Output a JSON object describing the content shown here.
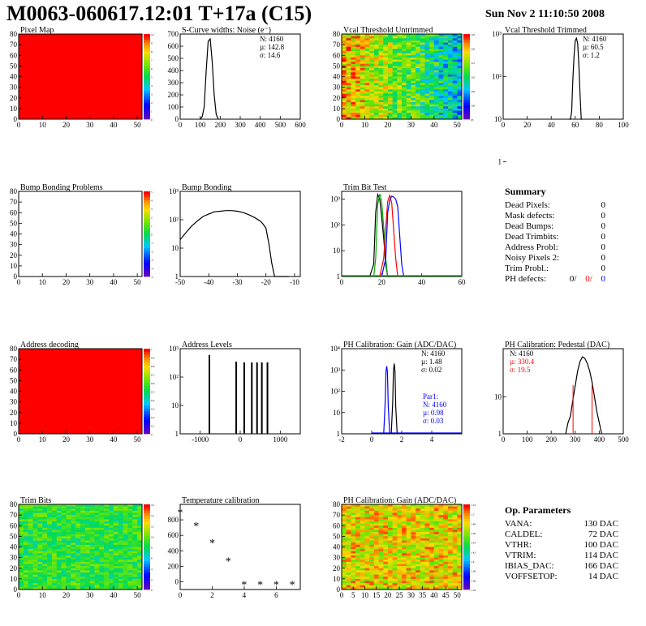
{
  "page": {
    "title": "M0063-060617.12:01 T+17a (C15)",
    "date": "Sun Nov  2 11:10:50 2008"
  },
  "chart_data": [
    {
      "id": "pixel-map",
      "type": "heatmap",
      "title": "Pixel Map",
      "xlim": [
        0,
        52
      ],
      "ylim": [
        0,
        80
      ],
      "xticks": [
        "0",
        "10",
        "20",
        "30",
        "40",
        "50"
      ],
      "yticks": [
        "0",
        "10",
        "20",
        "30",
        "40",
        "50",
        "60",
        "70",
        "80"
      ],
      "fill": "uniform-max",
      "zlim": [
        0,
        10
      ],
      "zticks": [
        "0",
        "1",
        "2",
        "3",
        "4",
        "5",
        "6",
        "7",
        "8",
        "9",
        "10"
      ]
    },
    {
      "id": "scurve-widths",
      "type": "line",
      "title": "S-Curve widths: Noise (e⁻)",
      "xlim": [
        0,
        600
      ],
      "ylim": [
        0,
        700
      ],
      "xticks": [
        "0",
        "100",
        "200",
        "300",
        "400",
        "500",
        "600"
      ],
      "yticks": [
        "0",
        "100",
        "200",
        "300",
        "400",
        "500",
        "600",
        "700"
      ],
      "stats": {
        "N": "N: 4160",
        "mu": "µ: 142.8",
        "sigma": "σ: 14.6"
      },
      "x": [
        100,
        110,
        120,
        130,
        140,
        150,
        160,
        170,
        180,
        190
      ],
      "y": [
        0,
        20,
        100,
        400,
        640,
        660,
        470,
        200,
        40,
        0
      ]
    },
    {
      "id": "vcal-untrimmed",
      "type": "heatmap",
      "title": "Vcal Threshold Untrimmed",
      "xlim": [
        0,
        52
      ],
      "ylim": [
        0,
        80
      ],
      "xticks": [
        "0",
        "10",
        "20",
        "30",
        "40",
        "50"
      ],
      "yticks": [
        "0",
        "10",
        "20",
        "30",
        "40",
        "50",
        "60",
        "70",
        "80"
      ],
      "zticks": [
        "95",
        "100",
        "105",
        "110",
        "115",
        "120",
        "125"
      ]
    },
    {
      "id": "vcal-trimmed",
      "type": "line",
      "title": "Vcal Threshold Trimmed",
      "xlim": [
        0,
        100
      ],
      "ylim_log": [
        1,
        3
      ],
      "xticks": [
        "0",
        "20",
        "40",
        "60",
        "80",
        "100"
      ],
      "yticks": [
        "1",
        "10",
        "10²",
        "10³"
      ],
      "stats": {
        "N": "N: 4160",
        "mu": "µ: 60.5",
        "sigma": "σ:  1.2"
      },
      "x": [
        55,
        56,
        57,
        58,
        59,
        60,
        61,
        62,
        63,
        64,
        65,
        66
      ],
      "y": [
        1,
        3,
        15,
        80,
        300,
        700,
        800,
        600,
        200,
        40,
        5,
        1
      ]
    },
    {
      "id": "bump-problems",
      "type": "heatmap",
      "title": "Bump Bonding Problems",
      "xlim": [
        0,
        52
      ],
      "ylim": [
        0,
        80
      ],
      "xticks": [
        "0",
        "10",
        "20",
        "30",
        "40",
        "50"
      ],
      "yticks": [
        "0",
        "10",
        "20",
        "30",
        "40",
        "50",
        "60",
        "70",
        "80"
      ],
      "fill": "empty",
      "zticks": [
        "-5",
        "-4",
        "-3",
        "-2",
        "-1",
        "0",
        "1",
        "2",
        "3",
        "4",
        "5"
      ]
    },
    {
      "id": "bump-bonding",
      "type": "line",
      "title": "Bump Bonding",
      "xlim": [
        -50,
        -8
      ],
      "ylim_log": [
        0,
        3
      ],
      "xticks": [
        "-50",
        "-40",
        "-30",
        "-20",
        "-10"
      ],
      "yticks": [
        "1",
        "10",
        "10²",
        "10³"
      ],
      "x": [
        -50,
        -48,
        -46,
        -44,
        -42,
        -40,
        -38,
        -36,
        -34,
        -32,
        -30,
        -28,
        -26,
        -24,
        -22,
        -21,
        -20,
        -19,
        -18,
        -17,
        -16,
        -15,
        -14,
        -13,
        -12
      ],
      "y": [
        20,
        35,
        60,
        90,
        130,
        160,
        190,
        200,
        210,
        210,
        200,
        180,
        150,
        120,
        90,
        70,
        50,
        15,
        3,
        1,
        0,
        0,
        1,
        0,
        0
      ]
    },
    {
      "id": "trim-bit-test",
      "type": "line",
      "title": "Trim Bit Test",
      "xlim": [
        0,
        60
      ],
      "ylim_log": [
        0,
        3.3
      ],
      "xticks": [
        "0",
        "20",
        "40",
        "60"
      ],
      "yticks": [
        "1",
        "10",
        "10²",
        "10³"
      ],
      "series": [
        {
          "color": "#000000",
          "x": [
            14,
            16,
            17,
            18,
            19,
            20,
            21,
            22,
            23,
            24
          ],
          "y": [
            0,
            3,
            300,
            1500,
            1000,
            200,
            30,
            3,
            0,
            0
          ]
        },
        {
          "color": "#00aa00",
          "x": [
            16,
            17,
            18,
            19,
            20,
            21,
            22,
            23
          ],
          "y": [
            0,
            5,
            600,
            1600,
            800,
            80,
            5,
            0
          ]
        },
        {
          "color": "#ff0000",
          "x": [
            19,
            21,
            22,
            23,
            24,
            25,
            26,
            27,
            28
          ],
          "y": [
            0,
            5,
            80,
            800,
            1400,
            700,
            60,
            5,
            0
          ]
        },
        {
          "color": "#0000ff",
          "x": [
            20,
            22,
            23,
            24,
            25,
            26,
            27,
            28,
            29,
            30,
            31
          ],
          "y": [
            0,
            5,
            300,
            900,
            1300,
            1200,
            1000,
            500,
            40,
            3,
            0
          ]
        }
      ]
    },
    {
      "id": "address-decoding",
      "type": "heatmap",
      "title": "Address decoding",
      "xlim": [
        0,
        52
      ],
      "ylim": [
        0,
        80
      ],
      "xticks": [
        "0",
        "10",
        "20",
        "30",
        "40",
        "50"
      ],
      "yticks": [
        "0",
        "10",
        "20",
        "30",
        "40",
        "50",
        "60",
        "70",
        "80"
      ],
      "fill": "uniform-max",
      "zticks": [
        "0",
        "0.1",
        "0.2",
        "0.3",
        "0.4",
        "0.5",
        "0.6",
        "0.7",
        "0.8",
        "0.9",
        "1"
      ]
    },
    {
      "id": "address-levels",
      "type": "bar",
      "title": "Address Levels",
      "xlim": [
        -1500,
        1500
      ],
      "ylim_log": [
        0,
        3
      ],
      "xticks": [
        "-1000",
        "0",
        "1000"
      ],
      "yticks": [
        "1",
        "10",
        "10²",
        "10³"
      ],
      "x": [
        -770,
        -100,
        100,
        290,
        420,
        540,
        680
      ],
      "y": [
        600,
        350,
        330,
        330,
        330,
        330,
        330
      ]
    },
    {
      "id": "ph-gain",
      "type": "line",
      "title": "PH Calibration: Gain (ADC/DAC)",
      "xlim": [
        -2,
        6
      ],
      "ylim_log": [
        0,
        4
      ],
      "xticks": [
        "-2",
        "0",
        "2",
        "4"
      ],
      "yticks": [
        "1",
        "10",
        "10²",
        "10³",
        "10⁴"
      ],
      "stats": {
        "N": "N: 4160",
        "mu": "µ: 1.48",
        "sigma": "σ: 0.02"
      },
      "stats2": {
        "label": "Par1:",
        "N": "N: 4160",
        "mu": "µ: 0.98",
        "sigma": "σ: 0.03"
      },
      "series": [
        {
          "color": "#000000",
          "x": [
            1.3,
            1.4,
            1.45,
            1.5,
            1.55,
            1.6,
            1.7
          ],
          "y": [
            0,
            30,
            900,
            2000,
            900,
            20,
            0
          ]
        },
        {
          "color": "#0000ff",
          "x": [
            0.8,
            0.9,
            0.95,
            1.0,
            1.05,
            1.1,
            1.2
          ],
          "y": [
            0,
            30,
            800,
            1500,
            800,
            20,
            0
          ]
        }
      ]
    },
    {
      "id": "ph-pedestal",
      "type": "line",
      "title": "PH Calibration: Pedestal (DAC)",
      "xlim": [
        0,
        500
      ],
      "ylim_log": [
        0,
        2.3
      ],
      "xticks": [
        "0",
        "100",
        "200",
        "300",
        "400",
        "500"
      ],
      "yticks": [
        "1",
        "10"
      ],
      "stats": {
        "N": "N: 4160",
        "mu": "µ: 330.4",
        "sigma": "σ: 19.5"
      },
      "x": [
        260,
        270,
        280,
        290,
        300,
        310,
        320,
        330,
        340,
        350,
        360,
        370,
        380,
        390,
        400,
        410
      ],
      "y": [
        1,
        2,
        3,
        8,
        20,
        50,
        90,
        120,
        110,
        80,
        50,
        25,
        10,
        4,
        2,
        1
      ]
    },
    {
      "id": "trim-bits",
      "type": "heatmap",
      "title": "Trim Bits",
      "xlim": [
        0,
        52
      ],
      "ylim": [
        0,
        80
      ],
      "xticks": [
        "0",
        "10",
        "20",
        "30",
        "40",
        "50"
      ],
      "yticks": [
        "0",
        "10",
        "20",
        "30",
        "40",
        "50",
        "60",
        "70",
        "80"
      ],
      "zticks": [
        "0",
        "2",
        "4",
        "6",
        "8",
        "10",
        "12",
        "14",
        "16"
      ]
    },
    {
      "id": "temperature-cal",
      "type": "scatter",
      "title": "Temperature calibration",
      "xlim": [
        0,
        7.5
      ],
      "ylim": [
        -100,
        1000
      ],
      "xticks": [
        "0",
        "2",
        "4",
        "6"
      ],
      "yticks": [
        "0",
        "200",
        "400",
        "600",
        "800"
      ],
      "x": [
        0,
        1,
        2,
        3,
        4,
        5,
        6,
        7
      ],
      "y": [
        900,
        730,
        510,
        270,
        -30,
        -30,
        -30,
        -30
      ]
    },
    {
      "id": "ph-gain-map",
      "type": "heatmap",
      "title": "PH Calibration: Gain (ADC/DAC)",
      "xlim": [
        0,
        52
      ],
      "ylim": [
        0,
        80
      ],
      "xticks": [
        "0",
        "5",
        "10",
        "15",
        "20",
        "25",
        "30",
        "35",
        "40",
        "45",
        "50"
      ],
      "yticks": [
        "0",
        "10",
        "20",
        "30",
        "40",
        "50",
        "60",
        "70",
        "80"
      ],
      "zticks": [
        "1.34",
        "1.36",
        "1.38",
        "1.4",
        "1.42",
        "1.44",
        "1.46",
        "1.48",
        "1.5",
        "1.52"
      ]
    }
  ],
  "summary": {
    "title": "Summary",
    "rows": [
      {
        "label": "Dead Pixels:",
        "value": "0"
      },
      {
        "label": "Mask defects:",
        "value": "0"
      },
      {
        "label": "Dead Bumps:",
        "value": "0"
      },
      {
        "label": "Dead Trimbits:",
        "value": "0"
      },
      {
        "label": "Address Probl:",
        "value": "0"
      },
      {
        "label": "Noisy Pixels 2:",
        "value": "0"
      },
      {
        "label": "Trim Probl.:",
        "value": "0"
      }
    ],
    "ph_label": "PH defects:",
    "ph_values": [
      "0/",
      "0/",
      "0"
    ]
  },
  "params": {
    "title": "Op. Parameters",
    "rows": [
      {
        "label": "VANA:",
        "value": "130 DAC"
      },
      {
        "label": "CALDEL:",
        "value": "72 DAC"
      },
      {
        "label": "VTHR:",
        "value": "100 DAC"
      },
      {
        "label": "VTRIM:",
        "value": "114 DAC"
      },
      {
        "label": "IBIAS_DAC:",
        "value": "166 DAC"
      },
      {
        "label": "VOFFSETOP:",
        "value": "14 DAC"
      }
    ]
  },
  "colors": {
    "red": "#ff0000",
    "blue": "#0000ff",
    "green": "#00aa00",
    "hist": "#000000"
  }
}
